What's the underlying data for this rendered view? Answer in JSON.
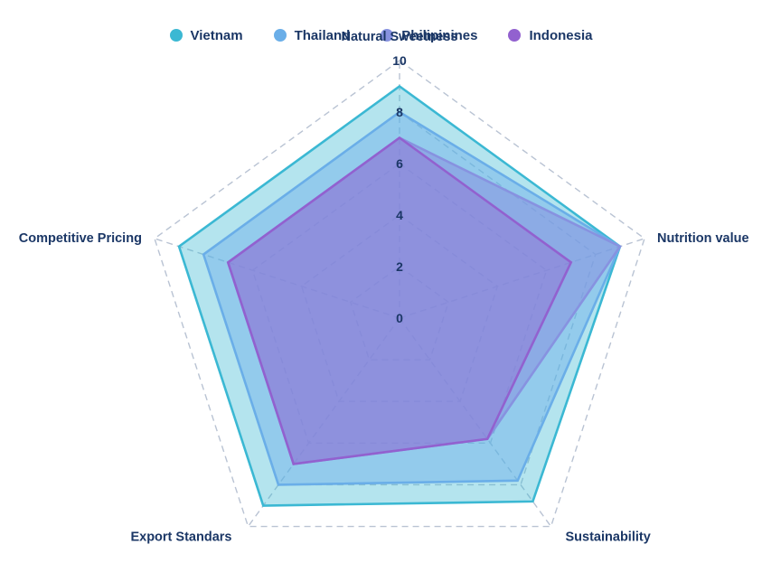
{
  "chart_data": {
    "type": "radar",
    "axes": [
      "Natural Sweetness",
      "Nutrition value",
      "Sustainability",
      "Export Standars",
      "Competitive Pricing"
    ],
    "rlim": [
      0,
      10
    ],
    "ticks": [
      "0",
      "2",
      "4",
      "6",
      "8",
      "10"
    ],
    "legend_position": "top",
    "grid": true,
    "series": [
      {
        "name": "Vietnam",
        "values": [
          9.0,
          9.0,
          8.8,
          9.0,
          9.0
        ],
        "color": "#3bb8d3"
      },
      {
        "name": "Thailand",
        "values": [
          8.0,
          9.0,
          7.8,
          8.0,
          8.0
        ],
        "color": "#6aaee8"
      },
      {
        "name": "Philipinines",
        "values": [
          7.0,
          9.0,
          5.8,
          7.0,
          7.0
        ],
        "color": "#8792e0"
      },
      {
        "name": "Indonesia",
        "values": [
          7.0,
          7.0,
          5.8,
          7.0,
          7.0
        ],
        "color": "#9261cf"
      }
    ]
  }
}
